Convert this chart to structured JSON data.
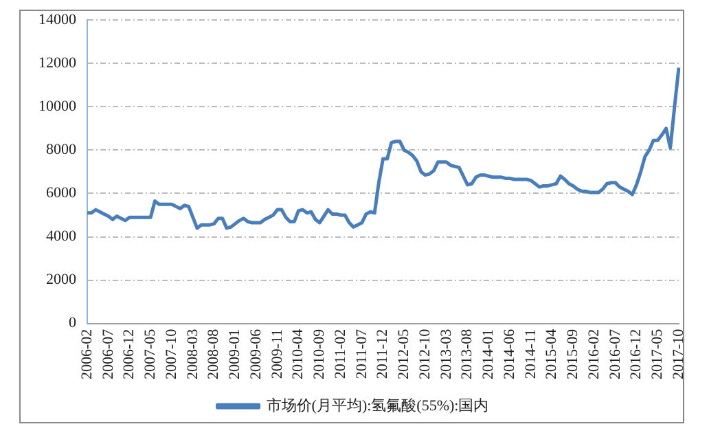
{
  "chart_data": {
    "type": "line",
    "categories": [
      "2006-02",
      null,
      null,
      null,
      null,
      "2006-07",
      null,
      null,
      null,
      null,
      "2006-12",
      null,
      null,
      null,
      null,
      "2007-05",
      null,
      null,
      null,
      null,
      "2007-10",
      null,
      null,
      null,
      null,
      "2008-03",
      null,
      null,
      null,
      null,
      "2008-08",
      null,
      null,
      null,
      null,
      "2009-01",
      null,
      null,
      null,
      null,
      "2009-06",
      null,
      null,
      null,
      null,
      "2009-11",
      null,
      null,
      null,
      null,
      "2010-04",
      null,
      null,
      null,
      null,
      "2010-09",
      null,
      null,
      null,
      null,
      "2011-02",
      null,
      null,
      null,
      null,
      "2011-07",
      null,
      null,
      null,
      null,
      "2011-12",
      null,
      null,
      null,
      null,
      "2012-05",
      null,
      null,
      null,
      null,
      "2012-10",
      null,
      null,
      null,
      null,
      "2013-03",
      null,
      null,
      null,
      null,
      "2013-08",
      null,
      null,
      null,
      null,
      "2014-01",
      null,
      null,
      null,
      null,
      "2014-06",
      null,
      null,
      null,
      null,
      "2014-11",
      null,
      null,
      null,
      null,
      "2015-04",
      null,
      null,
      null,
      null,
      "2015-09",
      null,
      null,
      null,
      null,
      "2016-02",
      null,
      null,
      null,
      null,
      "2016-07",
      null,
      null,
      null,
      null,
      "2016-12",
      null,
      null,
      null,
      null,
      "2017-05",
      null,
      null,
      null,
      null,
      "2017-10"
    ],
    "series": [
      {
        "name": "市场价(月平均):氢氟酸(55%):国内",
        "color": "#4a7ebb",
        "values": [
          5100,
          5100,
          5250,
          5150,
          5050,
          4950,
          4800,
          4950,
          4850,
          4750,
          4900,
          4900,
          4900,
          4900,
          4900,
          4900,
          5650,
          5500,
          5500,
          5500,
          5500,
          5400,
          5300,
          5450,
          5400,
          4900,
          4400,
          4550,
          4550,
          4550,
          4600,
          4850,
          4850,
          4400,
          4450,
          4600,
          4750,
          4850,
          4700,
          4650,
          4650,
          4650,
          4800,
          4900,
          5000,
          5250,
          5250,
          4900,
          4700,
          4700,
          5200,
          5250,
          5100,
          5150,
          4800,
          4650,
          4950,
          5250,
          5050,
          5050,
          5000,
          5000,
          4650,
          4450,
          4550,
          4650,
          5050,
          5150,
          5100,
          6500,
          7600,
          7600,
          8350,
          8400,
          8400,
          8000,
          7900,
          7750,
          7500,
          7000,
          6850,
          6900,
          7050,
          7450,
          7450,
          7450,
          7300,
          7250,
          7200,
          6800,
          6400,
          6450,
          6750,
          6850,
          6850,
          6800,
          6750,
          6750,
          6750,
          6700,
          6700,
          6650,
          6650,
          6650,
          6650,
          6600,
          6450,
          6300,
          6350,
          6350,
          6400,
          6450,
          6800,
          6650,
          6450,
          6350,
          6200,
          6100,
          6100,
          6050,
          6050,
          6050,
          6200,
          6450,
          6500,
          6500,
          6300,
          6200,
          6100,
          5950,
          6400,
          7000,
          7700,
          8000,
          8450,
          8450,
          8700,
          9000,
          8100,
          10000,
          11800
        ]
      }
    ],
    "ylim": [
      0,
      14000
    ],
    "yticks": [
      0,
      2000,
      4000,
      6000,
      8000,
      10000,
      12000,
      14000
    ],
    "grid": "y",
    "legend": "bottom",
    "marker": "none",
    "line_style": "solid"
  }
}
